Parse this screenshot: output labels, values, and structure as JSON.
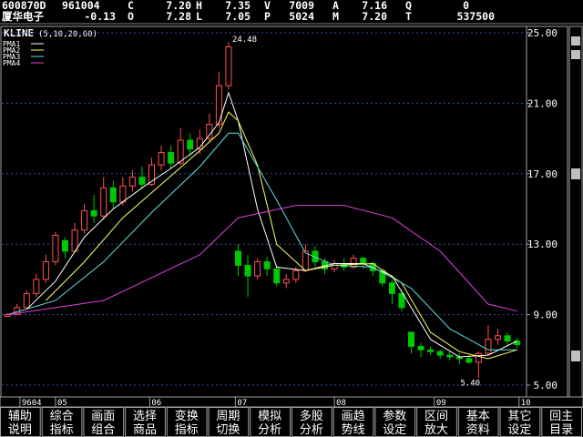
{
  "header": {
    "row1": [
      "600870D",
      "961004",
      "C",
      "7.20",
      "H",
      "7.35",
      "V",
      "7009",
      "A",
      "7.16",
      "Q",
      "0"
    ],
    "row2": [
      "厦华电子",
      "-0.13",
      "O",
      "7.28",
      "L",
      "7.05",
      "P",
      "5024",
      "M",
      "7.20",
      "T",
      "537500"
    ]
  },
  "chart_data": {
    "type": "candlestick",
    "title": "KLINE",
    "subtitle": "(5,10,20,60)",
    "open": [
      8.9,
      9.0,
      9.4,
      10.2,
      11.0,
      12.0,
      13.2,
      12.6,
      13.8,
      14.9,
      14.6,
      16.2,
      15.4,
      16.3,
      16.8,
      16.4,
      17.5,
      18.2,
      17.6,
      18.9,
      18.4,
      19.0,
      19.8,
      22.0,
      12.6,
      11.8,
      11.2,
      12.0,
      11.6,
      10.8,
      11.0,
      11.5,
      12.6,
      12.0,
      11.6,
      11.9,
      11.7,
      12.2,
      11.9,
      11.5,
      10.8,
      10.2,
      8.0,
      7.2,
      7.0,
      6.9,
      6.7,
      6.6,
      6.5,
      6.3,
      6.8,
      7.6,
      7.8,
      7.5
    ],
    "close": [
      9.0,
      9.4,
      10.2,
      11.0,
      12.0,
      13.5,
      12.6,
      13.8,
      14.9,
      14.6,
      16.2,
      15.4,
      16.3,
      16.8,
      16.4,
      17.5,
      18.2,
      17.6,
      18.9,
      18.4,
      19.0,
      19.8,
      22.0,
      24.2,
      11.8,
      11.2,
      12.0,
      11.6,
      10.8,
      11.0,
      11.5,
      12.6,
      12.0,
      11.6,
      11.9,
      11.7,
      12.2,
      11.9,
      11.5,
      10.8,
      10.2,
      9.4,
      7.2,
      7.0,
      6.9,
      6.7,
      6.6,
      6.5,
      6.3,
      6.8,
      7.6,
      7.8,
      7.5,
      7.3
    ],
    "high": [
      9.1,
      9.6,
      10.4,
      11.3,
      12.4,
      13.7,
      13.4,
      14.2,
      15.3,
      15.8,
      16.8,
      16.6,
      16.8,
      17.2,
      17.4,
      17.9,
      18.6,
      18.6,
      19.6,
      19.3,
      19.5,
      20.4,
      22.8,
      24.48,
      13.0,
      12.4,
      12.2,
      12.3,
      11.8,
      11.3,
      11.7,
      13.0,
      12.9,
      12.2,
      12.1,
      12.2,
      12.4,
      12.3,
      12.0,
      11.6,
      11.0,
      10.4,
      8.0,
      7.4,
      7.2,
      7.0,
      6.9,
      6.8,
      6.7,
      6.9,
      8.4,
      8.2,
      8.0,
      7.7
    ],
    "low": [
      8.9,
      9.0,
      9.3,
      10.0,
      10.8,
      11.8,
      12.2,
      12.5,
      13.6,
      14.2,
      14.4,
      15.0,
      15.2,
      16.0,
      16.1,
      16.3,
      17.2,
      17.3,
      17.5,
      18.0,
      18.1,
      18.8,
      19.6,
      21.8,
      11.2,
      10.0,
      11.0,
      11.2,
      10.6,
      10.5,
      10.8,
      11.4,
      11.7,
      11.3,
      11.4,
      11.5,
      11.6,
      11.6,
      11.2,
      10.6,
      9.6,
      9.2,
      6.8,
      6.6,
      6.7,
      6.5,
      6.4,
      6.2,
      6.2,
      5.4,
      6.7,
      7.3,
      7.2,
      7.1
    ],
    "up_color": "#ff5050",
    "down_color": "#00c800",
    "series": [
      {
        "name": "PMA1",
        "color": "#ffffff",
        "x": [
          2,
          5,
          8,
          11,
          14,
          17,
          20,
          22,
          23,
          24,
          26,
          28,
          31,
          34,
          37,
          40,
          42,
          44,
          47,
          50,
          53
        ],
        "values": [
          9.3,
          10.9,
          13.4,
          15.0,
          16.2,
          17.3,
          18.5,
          19.9,
          21.6,
          20.0,
          15.0,
          11.7,
          11.5,
          11.9,
          11.9,
          11.2,
          9.4,
          7.6,
          6.6,
          6.7,
          7.5
        ]
      },
      {
        "name": "PMA2",
        "color": "#ffff60",
        "x": [
          4,
          8,
          12,
          16,
          20,
          22,
          23,
          24,
          26,
          28,
          31,
          34,
          38,
          41,
          44,
          47,
          50,
          53
        ],
        "values": [
          9.8,
          12.0,
          14.5,
          16.4,
          18.3,
          19.3,
          20.5,
          20.0,
          17.5,
          13.0,
          11.5,
          11.8,
          11.9,
          10.8,
          8.0,
          6.9,
          6.5,
          7.0
        ]
      },
      {
        "name": "PMA3",
        "color": "#60e0e0",
        "x": [
          0,
          5,
          10,
          15,
          20,
          23,
          24,
          28,
          31,
          34,
          38,
          42,
          46,
          50,
          53
        ],
        "values": [
          9.0,
          9.8,
          12.0,
          14.8,
          17.4,
          19.3,
          19.3,
          15.5,
          12.5,
          11.8,
          11.7,
          10.5,
          8.2,
          7.0,
          7.0
        ]
      },
      {
        "name": "PMA4",
        "color": "#e040e0",
        "x": [
          0,
          10,
          20,
          24,
          30,
          35,
          40,
          45,
          50,
          53
        ],
        "values": [
          9.0,
          9.8,
          12.4,
          14.5,
          15.2,
          15.2,
          14.5,
          12.6,
          9.6,
          9.2
        ]
      }
    ],
    "extreme_labels": [
      {
        "index": 23,
        "value": 24.48,
        "label": "24.48"
      },
      {
        "index": 49,
        "value": 5.4,
        "label": "5.40"
      }
    ],
    "xlim": [
      -0.3,
      53.7
    ],
    "xticks": [
      {
        "value": 1.3,
        "label": "9604"
      },
      {
        "value": 5,
        "label": "05"
      },
      {
        "value": 14.8,
        "label": "06"
      },
      {
        "value": 23.7,
        "label": "07"
      },
      {
        "value": 34,
        "label": "08"
      },
      {
        "value": 44.4,
        "label": "09"
      },
      {
        "value": 53.2,
        "label": "10"
      }
    ],
    "ylim": [
      5,
      25
    ],
    "yticks": [
      {
        "value": 5,
        "label": "5.00"
      },
      {
        "value": 9,
        "label": "9.00"
      },
      {
        "value": 13,
        "label": "13.00"
      },
      {
        "value": 17,
        "label": "17.00"
      },
      {
        "value": 21,
        "label": "21.00"
      },
      {
        "value": 25,
        "label": "25.00"
      }
    ],
    "grid": true
  },
  "menu": [
    [
      "辅助",
      "说明"
    ],
    [
      "综合",
      "指标"
    ],
    [
      "画面",
      "组合"
    ],
    [
      "选择",
      "商品"
    ],
    [
      "变换",
      "指标"
    ],
    [
      "周期",
      "切换"
    ],
    [
      "模拟",
      "分析"
    ],
    [
      "多股",
      "分析"
    ],
    [
      "画趋",
      "势线"
    ],
    [
      "参数",
      "设定"
    ],
    [
      "区间",
      "放大"
    ],
    [
      "基本",
      "资料"
    ],
    [
      "其它",
      "设定"
    ],
    [
      "回主",
      "目录"
    ]
  ]
}
